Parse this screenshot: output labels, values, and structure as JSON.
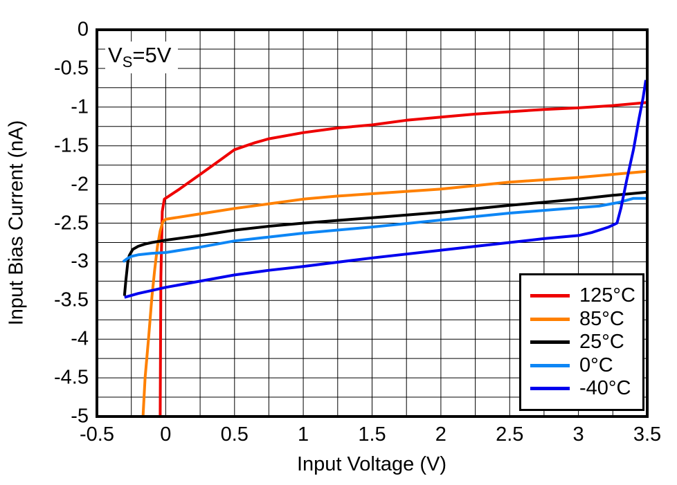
{
  "annotation": {
    "base": "V",
    "subscript": "S",
    "rest": "=5V"
  },
  "chart_data": {
    "type": "line",
    "title": "",
    "xlabel": "Input Voltage (V)",
    "ylabel": "Input Bias Current (nA)",
    "xlim": [
      -0.5,
      3.5
    ],
    "ylim": [
      -5,
      0
    ],
    "grid": true,
    "grid_step": 0.25,
    "grid_color": "#000000",
    "frame_color": "#000000",
    "legend_position": "bottom-right",
    "x_ticks": [
      {
        "v": -0.5,
        "label": "-0.5"
      },
      {
        "v": 0,
        "label": "0"
      },
      {
        "v": 0.5,
        "label": "0.5"
      },
      {
        "v": 1,
        "label": "1"
      },
      {
        "v": 1.5,
        "label": "1.5"
      },
      {
        "v": 2,
        "label": "2"
      },
      {
        "v": 2.5,
        "label": "2.5"
      },
      {
        "v": 3,
        "label": "3"
      },
      {
        "v": 3.5,
        "label": "3.5"
      }
    ],
    "y_ticks": [
      {
        "v": 0,
        "label": "0"
      },
      {
        "v": -0.5,
        "label": "-0.5"
      },
      {
        "v": -1,
        "label": "-1"
      },
      {
        "v": -1.5,
        "label": "-1.5"
      },
      {
        "v": -2,
        "label": "-2"
      },
      {
        "v": -2.5,
        "label": "-2.5"
      },
      {
        "v": -3,
        "label": "-3"
      },
      {
        "v": -3.5,
        "label": "-3.5"
      },
      {
        "v": -4,
        "label": "-4"
      },
      {
        "v": -4.5,
        "label": "-4.5"
      },
      {
        "v": -5,
        "label": "-5"
      }
    ],
    "series": [
      {
        "id": "125c",
        "name": "125°C",
        "color": "#EE0000",
        "points": [
          [
            -0.04,
            -5.0
          ],
          [
            -0.035,
            -3.2
          ],
          [
            -0.025,
            -2.35
          ],
          [
            -0.01,
            -2.19
          ],
          [
            0.1,
            -2.06
          ],
          [
            0.25,
            -1.87
          ],
          [
            0.4,
            -1.68
          ],
          [
            0.5,
            -1.55
          ],
          [
            0.65,
            -1.46
          ],
          [
            0.75,
            -1.41
          ],
          [
            1.0,
            -1.33
          ],
          [
            1.25,
            -1.27
          ],
          [
            1.5,
            -1.23
          ],
          [
            1.75,
            -1.17
          ],
          [
            2.0,
            -1.13
          ],
          [
            2.25,
            -1.09
          ],
          [
            2.5,
            -1.06
          ],
          [
            2.75,
            -1.03
          ],
          [
            3.0,
            -1.01
          ],
          [
            3.25,
            -0.98
          ],
          [
            3.5,
            -0.94
          ]
        ]
      },
      {
        "id": "85c",
        "name": "85°C",
        "color": "#FF8000",
        "points": [
          [
            -0.165,
            -5.0
          ],
          [
            -0.15,
            -4.5
          ],
          [
            -0.125,
            -4.0
          ],
          [
            -0.1,
            -3.45
          ],
          [
            -0.08,
            -3.1
          ],
          [
            -0.06,
            -2.8
          ],
          [
            -0.04,
            -2.6
          ],
          [
            -0.02,
            -2.48
          ],
          [
            0.0,
            -2.45
          ],
          [
            0.25,
            -2.38
          ],
          [
            0.5,
            -2.31
          ],
          [
            0.75,
            -2.25
          ],
          [
            1.0,
            -2.19
          ],
          [
            1.25,
            -2.15
          ],
          [
            1.5,
            -2.12
          ],
          [
            2.0,
            -2.06
          ],
          [
            2.5,
            -1.97
          ],
          [
            3.0,
            -1.91
          ],
          [
            3.25,
            -1.87
          ],
          [
            3.5,
            -1.83
          ]
        ]
      },
      {
        "id": "25c",
        "name": "25°C",
        "color": "#000000",
        "points": [
          [
            -0.3,
            -3.44
          ],
          [
            -0.29,
            -3.25
          ],
          [
            -0.275,
            -3.0
          ],
          [
            -0.265,
            -2.92
          ],
          [
            -0.24,
            -2.84
          ],
          [
            -0.2,
            -2.8
          ],
          [
            -0.15,
            -2.77
          ],
          [
            -0.1,
            -2.75
          ],
          [
            0.0,
            -2.72
          ],
          [
            0.25,
            -2.66
          ],
          [
            0.5,
            -2.59
          ],
          [
            0.75,
            -2.54
          ],
          [
            1.0,
            -2.5
          ],
          [
            1.5,
            -2.43
          ],
          [
            2.0,
            -2.36
          ],
          [
            2.5,
            -2.27
          ],
          [
            3.0,
            -2.19
          ],
          [
            3.25,
            -2.14
          ],
          [
            3.5,
            -2.1
          ]
        ]
      },
      {
        "id": "0c",
        "name": "0°C",
        "color": "#0D86F5",
        "points": [
          [
            -0.31,
            -3.0
          ],
          [
            -0.28,
            -2.96
          ],
          [
            -0.25,
            -2.93
          ],
          [
            -0.2,
            -2.91
          ],
          [
            -0.1,
            -2.89
          ],
          [
            0.0,
            -2.88
          ],
          [
            0.25,
            -2.81
          ],
          [
            0.5,
            -2.73
          ],
          [
            0.75,
            -2.68
          ],
          [
            1.0,
            -2.63
          ],
          [
            1.5,
            -2.55
          ],
          [
            2.0,
            -2.46
          ],
          [
            2.5,
            -2.37
          ],
          [
            3.0,
            -2.3
          ],
          [
            3.15,
            -2.28
          ],
          [
            3.3,
            -2.23
          ],
          [
            3.4,
            -2.18
          ],
          [
            3.5,
            -2.18
          ]
        ]
      },
      {
        "id": "neg40c",
        "name": "-40°C",
        "color": "#0000EE",
        "points": [
          [
            -0.3,
            -3.46
          ],
          [
            -0.2,
            -3.41
          ],
          [
            -0.1,
            -3.37
          ],
          [
            0.0,
            -3.33
          ],
          [
            0.25,
            -3.25
          ],
          [
            0.5,
            -3.17
          ],
          [
            0.75,
            -3.11
          ],
          [
            1.0,
            -3.06
          ],
          [
            1.5,
            -2.95
          ],
          [
            2.0,
            -2.85
          ],
          [
            2.5,
            -2.75
          ],
          [
            2.75,
            -2.7
          ],
          [
            3.0,
            -2.66
          ],
          [
            3.1,
            -2.62
          ],
          [
            3.17,
            -2.58
          ],
          [
            3.22,
            -2.55
          ],
          [
            3.28,
            -2.5
          ],
          [
            3.31,
            -2.3
          ],
          [
            3.35,
            -1.95
          ],
          [
            3.4,
            -1.55
          ],
          [
            3.44,
            -1.15
          ],
          [
            3.47,
            -0.88
          ],
          [
            3.49,
            -0.65
          ]
        ]
      }
    ]
  }
}
